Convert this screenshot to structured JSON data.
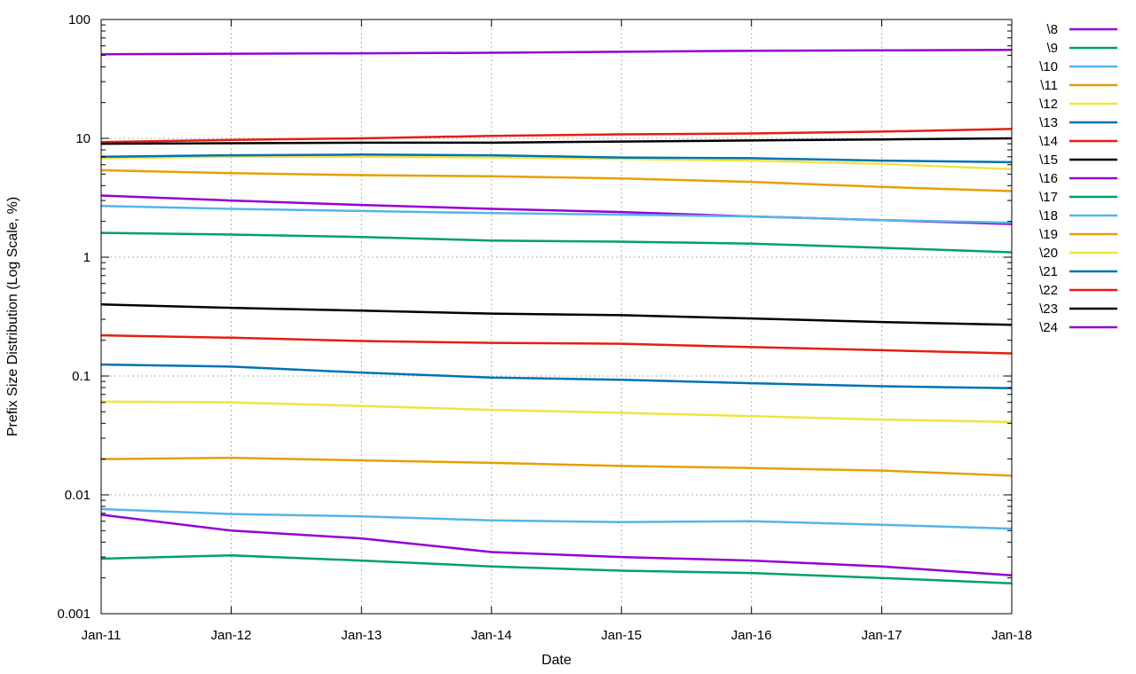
{
  "chart_data": {
    "type": "line",
    "title": "",
    "xlabel": "Date",
    "ylabel": "Prefix Size Distribution (Log Scale, %)",
    "y_scale": "log",
    "ylim": [
      0.001,
      100
    ],
    "xlim": [
      "2011-01-01",
      "2018-01-01"
    ],
    "grid": true,
    "legend_position": "right",
    "x_ticks": [
      "Jan-11",
      "Jan-12",
      "Jan-13",
      "Jan-14",
      "Jan-15",
      "Jan-16",
      "Jan-17",
      "Jan-18"
    ],
    "y_ticks": [
      "0.001",
      "0.01",
      "0.1",
      "1",
      "10",
      "100"
    ],
    "x": [
      "2011-01-01",
      "2012-01-01",
      "2013-01-01",
      "2014-01-01",
      "2015-01-01",
      "2016-01-01",
      "2017-01-01",
      "2018-01-01"
    ],
    "series": [
      {
        "name": "\\8",
        "color": "#9400d3",
        "values": [
          0.0068,
          0.005,
          0.0043,
          0.0033,
          0.003,
          0.0028,
          0.0025,
          0.0021
        ]
      },
      {
        "name": "\\9",
        "color": "#009e73",
        "values": [
          0.0029,
          0.0031,
          0.0028,
          0.0025,
          0.0023,
          0.0022,
          0.002,
          0.0018
        ]
      },
      {
        "name": "\\10",
        "color": "#56b4e9",
        "values": [
          0.0076,
          0.0069,
          0.0066,
          0.0061,
          0.0059,
          0.006,
          0.0056,
          0.0052
        ]
      },
      {
        "name": "\\11",
        "color": "#e69f00",
        "values": [
          0.02,
          0.0205,
          0.0195,
          0.0186,
          0.0175,
          0.0168,
          0.016,
          0.0145
        ]
      },
      {
        "name": "\\12",
        "color": "#f0e442",
        "values": [
          0.061,
          0.06,
          0.056,
          0.052,
          0.049,
          0.046,
          0.043,
          0.041
        ]
      },
      {
        "name": "\\13",
        "color": "#0072b2",
        "values": [
          0.125,
          0.12,
          0.107,
          0.097,
          0.093,
          0.087,
          0.082,
          0.079
        ]
      },
      {
        "name": "\\14",
        "color": "#e51e10",
        "values": [
          0.22,
          0.21,
          0.197,
          0.19,
          0.187,
          0.175,
          0.165,
          0.155
        ]
      },
      {
        "name": "\\15",
        "color": "#000000",
        "values": [
          0.4,
          0.375,
          0.355,
          0.335,
          0.325,
          0.305,
          0.285,
          0.27
        ]
      },
      {
        "name": "\\16",
        "color": "#9400d3",
        "values": [
          3.3,
          3.0,
          2.75,
          2.55,
          2.4,
          2.2,
          2.05,
          1.9
        ]
      },
      {
        "name": "\\17",
        "color": "#009e73",
        "values": [
          1.6,
          1.55,
          1.48,
          1.38,
          1.35,
          1.3,
          1.2,
          1.1
        ]
      },
      {
        "name": "\\18",
        "color": "#56b4e9",
        "values": [
          2.7,
          2.55,
          2.45,
          2.35,
          2.28,
          2.2,
          2.05,
          1.95
        ]
      },
      {
        "name": "\\19",
        "color": "#e69f00",
        "values": [
          5.4,
          5.1,
          4.9,
          4.8,
          4.6,
          4.3,
          3.9,
          3.6
        ]
      },
      {
        "name": "\\20",
        "color": "#f0e442",
        "values": [
          6.8,
          7.0,
          7.0,
          6.9,
          6.7,
          6.5,
          6.1,
          5.5
        ]
      },
      {
        "name": "\\21",
        "color": "#0072b2",
        "values": [
          7.0,
          7.2,
          7.3,
          7.2,
          6.9,
          6.8,
          6.5,
          6.3
        ]
      },
      {
        "name": "\\22",
        "color": "#e51e10",
        "values": [
          9.3,
          9.7,
          10.0,
          10.5,
          10.8,
          11.0,
          11.4,
          12.0
        ]
      },
      {
        "name": "\\23",
        "color": "#000000",
        "values": [
          9.0,
          9.1,
          9.2,
          9.2,
          9.4,
          9.6,
          9.8,
          10.0
        ]
      },
      {
        "name": "\\24",
        "color": "#9400d3",
        "values": [
          51.0,
          51.5,
          52.0,
          52.5,
          53.5,
          54.5,
          55.0,
          55.5
        ]
      }
    ]
  }
}
